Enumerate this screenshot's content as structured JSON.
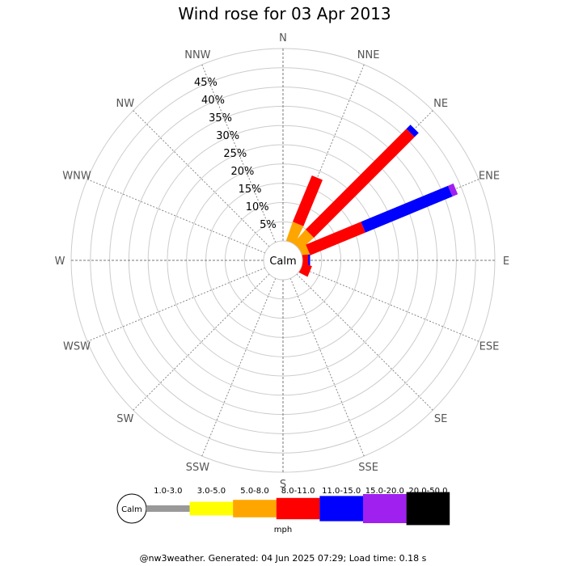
{
  "chart_data": {
    "type": "wind-rose",
    "title": "Wind rose for 03 Apr 2013",
    "directions": [
      "N",
      "NNE",
      "NE",
      "ENE",
      "E",
      "ESE",
      "SE",
      "SSE",
      "S",
      "SSW",
      "SW",
      "WSW",
      "W",
      "WNW",
      "NW",
      "NNW"
    ],
    "radial_ticks": [
      "5%",
      "10%",
      "15%",
      "20%",
      "25%",
      "30%",
      "35%",
      "40%",
      "45%"
    ],
    "rmax": 50,
    "calm_label": "Calm",
    "speed_bins": [
      {
        "label": "1.0-3.0",
        "color": "#999999"
      },
      {
        "label": "3.0-5.0",
        "color": "#ffff00"
      },
      {
        "label": "5.0-8.0",
        "color": "#ffa500"
      },
      {
        "label": "8.0-11.0",
        "color": "#ff0000"
      },
      {
        "label": "11.0-15.0",
        "color": "#0000ff"
      },
      {
        "label": "15.0-20.0",
        "color": "#a020f0"
      },
      {
        "label": "20.0-50.0",
        "color": "#000000"
      }
    ],
    "units": "mph",
    "values": {
      "NNE": [
        0,
        0,
        5.2,
        13.0,
        0,
        0,
        0
      ],
      "NE": [
        0,
        0,
        4.8,
        37.0,
        1.5,
        0,
        0
      ],
      "ENE": [
        0,
        0,
        2.0,
        15.5,
        24.5,
        1.5,
        0
      ],
      "E": [
        0,
        0,
        0,
        1.5,
        0.5,
        0,
        0
      ],
      "ESE": [
        0,
        0,
        0,
        2.5,
        0,
        0,
        0
      ]
    },
    "grid": true
  },
  "footer": "@nw3weather. Generated: 04 Jun 2025 07:29; Load time: 0.18 s"
}
